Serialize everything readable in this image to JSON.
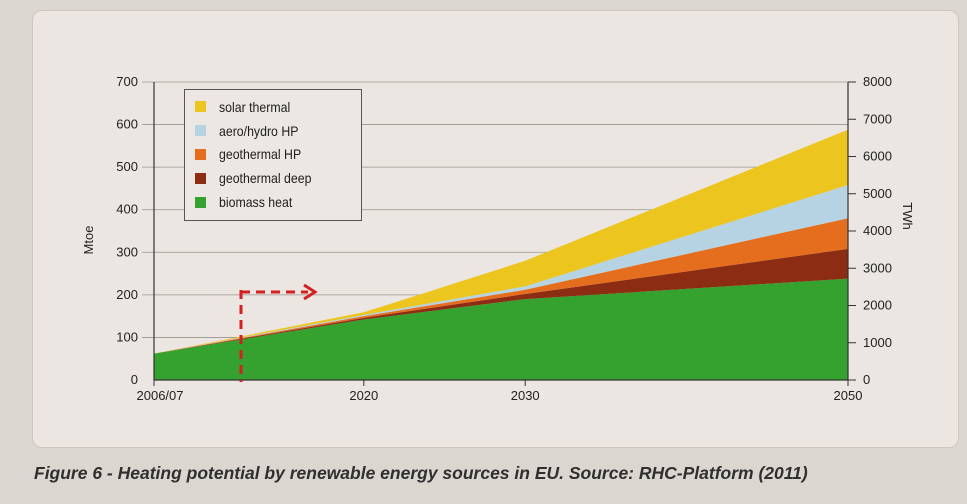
{
  "chart_data": {
    "type": "area",
    "stacked": true,
    "x": [
      2007,
      2020,
      2030,
      2050
    ],
    "x_tick_labels": [
      "2006/07",
      "2020",
      "2030",
      "2050"
    ],
    "xlim": [
      2007,
      2050
    ],
    "ylabel": "Mtoe",
    "ylim": [
      0,
      700
    ],
    "y_ticks": [
      0,
      100,
      200,
      300,
      400,
      500,
      600,
      700
    ],
    "y2label": "TWh",
    "y2lim": [
      0,
      8000
    ],
    "y2_ticks": [
      0,
      1000,
      2000,
      3000,
      4000,
      5000,
      6000,
      7000,
      8000
    ],
    "series": [
      {
        "name": "biomass heat",
        "color": "#35a12e",
        "values": [
          62,
          142,
          190,
          238
        ]
      },
      {
        "name": "geothermal deep",
        "color": "#8b2c13",
        "values": [
          0,
          4,
          12,
          70
        ]
      },
      {
        "name": "geothermal HP",
        "color": "#e46e1e",
        "values": [
          0,
          4,
          10,
          72
        ]
      },
      {
        "name": "aero/hydro HP",
        "color": "#b5d3e3",
        "values": [
          0,
          3,
          8,
          78
        ]
      },
      {
        "name": "solar thermal",
        "color": "#ecc51f",
        "values": [
          0,
          6,
          60,
          130
        ]
      }
    ],
    "legend_position": "top-left",
    "grid": "horizontal"
  },
  "caption": "Figure 6 - Heating potential by renewable energy sources in EU. Source: RHC-Platform (2011)",
  "annotation_color": "#d42020"
}
